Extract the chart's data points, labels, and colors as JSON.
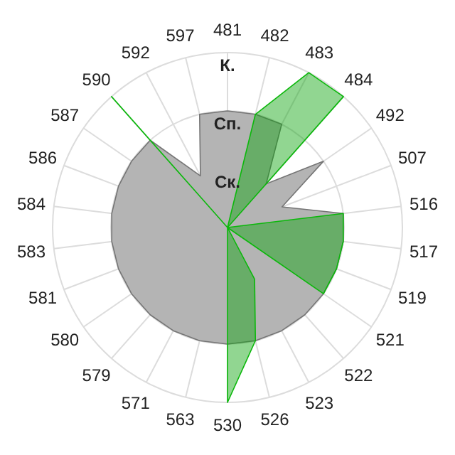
{
  "chart_data": {
    "type": "radar",
    "categories": [
      "481",
      "482",
      "483",
      "484",
      "492",
      "507",
      "516",
      "517",
      "519",
      "521",
      "522",
      "523",
      "526",
      "530",
      "563",
      "571",
      "579",
      "580",
      "581",
      "583",
      "584",
      "586",
      "587",
      "590",
      "592",
      "597"
    ],
    "series": [
      {
        "color": "#b4b4b4",
        "values": [
          2,
          2,
          2,
          1,
          2,
          1,
          2,
          2,
          2,
          2,
          2,
          2,
          2,
          2,
          2,
          2,
          2,
          2,
          2,
          2,
          2,
          2,
          2,
          2,
          1,
          2
        ]
      },
      {
        "color": "#0aa50a",
        "values": [
          0,
          2,
          3,
          3,
          0,
          0,
          2,
          2,
          2,
          2,
          0,
          1,
          2,
          3,
          0,
          0,
          0,
          0,
          0,
          0,
          0,
          0,
          0,
          3,
          0,
          0
        ]
      }
    ],
    "ylim": [
      0,
      3
    ],
    "yticks": [
      {
        "value": 1,
        "label": "Ск."
      },
      {
        "value": 2,
        "label": "Сп."
      },
      {
        "value": 3,
        "label": "К."
      }
    ],
    "grid": true
  }
}
